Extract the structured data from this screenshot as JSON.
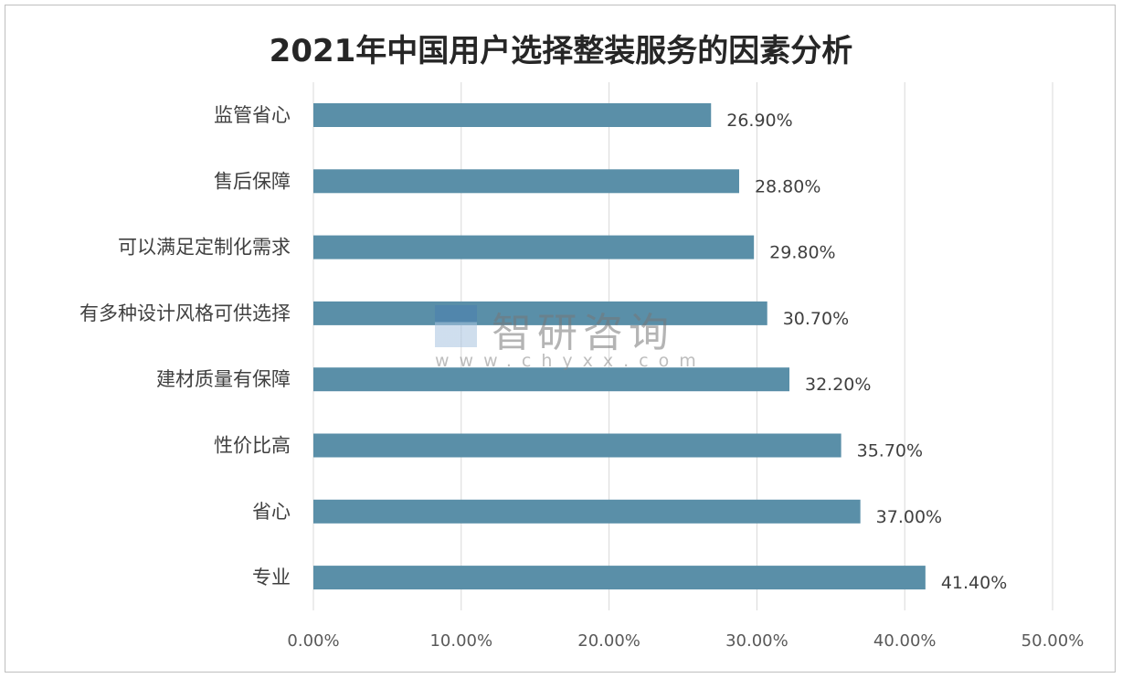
{
  "chart_data": {
    "type": "bar",
    "orientation": "horizontal",
    "title": "2021年中国用户选择整装服务的因素分析",
    "categories": [
      "监管省心",
      "售后保障",
      "可以满足定制化需求",
      "有多种设计风格可供选择",
      "建材质量有保障",
      "性价比高",
      "省心",
      "专业"
    ],
    "values": [
      26.9,
      28.8,
      29.8,
      30.7,
      32.2,
      35.7,
      37.0,
      41.4
    ],
    "value_labels": [
      "26.90%",
      "28.80%",
      "29.80%",
      "30.70%",
      "32.20%",
      "35.70%",
      "37.00%",
      "41.40%"
    ],
    "xlim": [
      0,
      50
    ],
    "x_ticks": [
      "0.00%",
      "10.00%",
      "20.00%",
      "30.00%",
      "40.00%",
      "50.00%"
    ],
    "xlabel": "",
    "ylabel": "",
    "grid": "vertical",
    "legend": "none",
    "bar_color": "#5a8fa8"
  },
  "watermark": {
    "name": "智研咨询",
    "url": "www.chyxx.com"
  }
}
